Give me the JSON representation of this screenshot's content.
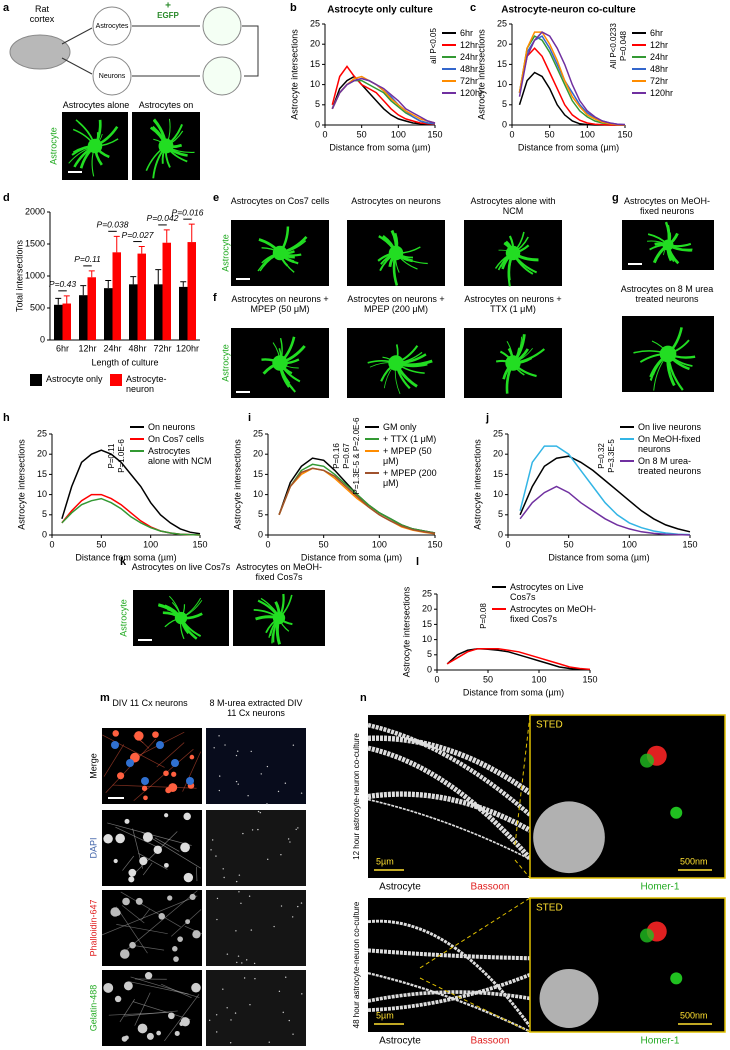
{
  "panel_letters": [
    "a",
    "b",
    "c",
    "d",
    "e",
    "f",
    "g",
    "h",
    "i",
    "j",
    "k",
    "l",
    "m",
    "n"
  ],
  "panel_a": {
    "region": "Rat cortex",
    "astrocytes": "Astrocytes",
    "neurons": "Neurons",
    "label": "EGFP",
    "plus": "+",
    "left": "Astrocytes alone",
    "right": "Astrocytes on neurons",
    "stain": "Astrocyte"
  },
  "panel_e": {
    "headers": [
      "Astrocytes on Cos7 cells",
      "Astrocytes on neurons",
      "Astrocytes alone with NCM"
    ],
    "stain": "Astrocyte"
  },
  "panel_f": {
    "headers": [
      "Astrocytes on neurons + MPEP (50 μM)",
      "Astrocytes on neurons + MPEP (200 μM)",
      "Astrocytes on neurons + TTX (1 μM)"
    ],
    "stain": "Astrocyte"
  },
  "panel_g": {
    "headers": [
      "Astrocytes on MeOH-fixed neurons",
      "Astrocytes on 8 M urea treated neurons"
    ]
  },
  "panel_k": {
    "headers": [
      "Astrocytes on live Cos7s",
      "Astrocytes on MeOH-fixed Cos7s"
    ],
    "stain": "Astrocyte"
  },
  "panel_m": {
    "columns": [
      "DIV 11 Cx neurons",
      "8 M-urea extracted DIV 11 Cx neurons"
    ],
    "rows": [
      "Merge",
      "DAPI",
      "Phalloidin-647",
      "Gelatin-488"
    ]
  },
  "panel_n": {
    "rows": [
      "12 hour astrocyte-neuron co-culture",
      "48 hour astrocyte-neuron co-culture"
    ],
    "inset": "STED",
    "scale_large": "5µm",
    "scale_small": "500nm",
    "channels": [
      "Astrocyte",
      "Bassoon",
      "Homer-1"
    ]
  },
  "chart_data": [
    {
      "type": "line",
      "title": "Astrocyte only culture",
      "xlabel": "Distance from soma (µm)",
      "ylabel": "Astrocyte intersections",
      "x": [
        10,
        20,
        30,
        40,
        50,
        60,
        70,
        80,
        90,
        100,
        110,
        120,
        130,
        140,
        150
      ],
      "xlim": [
        0,
        150
      ],
      "xticks": [
        0,
        50,
        100,
        150
      ],
      "ylim": [
        0,
        25
      ],
      "yticks": [
        0,
        5,
        10,
        15,
        20,
        25
      ],
      "legend": "outside right",
      "annotations": [
        "all P<0.05"
      ],
      "series": [
        {
          "name": "6hr",
          "color": "#000000",
          "values": [
            4,
            9,
            11,
            12,
            10,
            8,
            6,
            4,
            2.5,
            1.5,
            1,
            0.5,
            0.3,
            0.2,
            0.1
          ]
        },
        {
          "name": "12hr",
          "color": "#ff0000",
          "values": [
            5,
            12,
            14.5,
            12,
            10,
            9,
            8,
            6,
            4,
            2.5,
            1.5,
            1,
            0.5,
            0.3,
            0.2
          ]
        },
        {
          "name": "24hr",
          "color": "#339933",
          "values": [
            4,
            8,
            10,
            11,
            11,
            10,
            9,
            8,
            6,
            4.5,
            3,
            2,
            1,
            0.5,
            0.3
          ]
        },
        {
          "name": "48hr",
          "color": "#3366cc",
          "values": [
            4,
            8,
            10,
            11,
            11.5,
            11,
            10,
            8.5,
            7,
            5,
            3.5,
            2,
            1,
            0.5,
            0.3
          ]
        },
        {
          "name": "72hr",
          "color": "#ff8c00",
          "values": [
            4,
            8,
            10,
            11.5,
            12,
            11,
            10,
            8.5,
            6.5,
            5,
            3.5,
            2.5,
            1.5,
            1,
            0.5
          ]
        },
        {
          "name": "120hr",
          "color": "#7030a0",
          "values": [
            4,
            8,
            10,
            11,
            11.5,
            11,
            10,
            9,
            7.5,
            6,
            4,
            3,
            2,
            1,
            0.5
          ]
        }
      ]
    },
    {
      "type": "line",
      "title": "Astrocyte-neuron co-culture",
      "xlabel": "Distance from soma (µm)",
      "ylabel": "Astrocyte intersections",
      "x": [
        10,
        20,
        30,
        40,
        50,
        60,
        70,
        80,
        90,
        100,
        110,
        120,
        130,
        140,
        150
      ],
      "xlim": [
        0,
        150
      ],
      "xticks": [
        0,
        50,
        100,
        150
      ],
      "ylim": [
        0,
        25
      ],
      "yticks": [
        0,
        5,
        10,
        15,
        20,
        25
      ],
      "legend": "outside right",
      "annotations": [
        "P=0.048",
        "All P<0.0233"
      ],
      "series": [
        {
          "name": "6hr",
          "color": "#000000",
          "values": [
            5,
            11,
            13,
            12,
            9,
            5,
            2.5,
            1,
            0.3,
            0.1,
            0,
            0,
            0,
            0,
            0
          ]
        },
        {
          "name": "12hr",
          "color": "#ff0000",
          "values": [
            8,
            17,
            19,
            17,
            13,
            9,
            5,
            2.5,
            1.2,
            0.5,
            0.2,
            0.1,
            0,
            0,
            0
          ]
        },
        {
          "name": "24hr",
          "color": "#339933",
          "values": [
            8,
            19,
            22,
            21,
            18,
            14,
            10,
            6,
            3.5,
            2,
            1,
            0.5,
            0.3,
            0.1,
            0
          ]
        },
        {
          "name": "48hr",
          "color": "#3366cc",
          "values": [
            8,
            18,
            21,
            22,
            19,
            15,
            11,
            8,
            5,
            3,
            1.8,
            1,
            0.5,
            0.2,
            0.1
          ]
        },
        {
          "name": "72hr",
          "color": "#ff8c00",
          "values": [
            8,
            19,
            23,
            23,
            20,
            16,
            11,
            7,
            4.5,
            2.5,
            1.5,
            0.7,
            0.3,
            0.1,
            0
          ]
        },
        {
          "name": "120hr",
          "color": "#7030a0",
          "values": [
            7,
            17,
            21,
            23,
            22,
            19,
            15,
            10,
            6,
            3.5,
            2,
            1,
            0.5,
            0.2,
            0.1
          ]
        }
      ]
    },
    {
      "type": "bar",
      "xlabel": "Length of culture",
      "ylabel": "Total intersections",
      "categories": [
        "6hr",
        "12hr",
        "24hr",
        "48hr",
        "72hr",
        "120hr"
      ],
      "ylim": [
        0,
        2000
      ],
      "yticks": [
        0,
        500,
        1000,
        1500,
        2000
      ],
      "legend": "below",
      "annotations": [
        "P=0.43",
        "P=0.11",
        "P=0.038",
        "P=0.027",
        "P=0.042",
        "P=0.016"
      ],
      "series": [
        {
          "name": "Astrocyte only",
          "color": "#000000",
          "values": [
            550,
            700,
            810,
            870,
            870,
            830
          ],
          "errors": [
            100,
            150,
            120,
            120,
            230,
            80
          ]
        },
        {
          "name": "Astrocyte-neuron",
          "color": "#ff0000",
          "values": [
            570,
            980,
            1370,
            1350,
            1520,
            1530
          ],
          "errors": [
            120,
            100,
            250,
            110,
            200,
            280
          ]
        }
      ]
    },
    {
      "type": "line",
      "xlabel": "Distance from soma (µm)",
      "ylabel": "Astrocyte intersections",
      "x": [
        10,
        20,
        30,
        40,
        50,
        60,
        70,
        80,
        90,
        100,
        110,
        120,
        130,
        140,
        150
      ],
      "xlim": [
        0,
        150
      ],
      "xticks": [
        0,
        50,
        100,
        150
      ],
      "ylim": [
        0,
        25
      ],
      "yticks": [
        0,
        5,
        10,
        15,
        20,
        25
      ],
      "legend": "upper right",
      "annotations": [
        "P=1.0E-6",
        "P=0.11"
      ],
      "series": [
        {
          "name": "On neurons",
          "color": "#000000",
          "values": [
            4,
            12,
            18,
            20,
            21,
            20,
            18,
            15,
            12,
            8,
            5,
            3,
            1.5,
            0.7,
            0.3
          ]
        },
        {
          "name": "On Cos7 cells",
          "color": "#ff0000",
          "values": [
            3,
            6,
            8.5,
            10,
            10,
            9,
            7.5,
            5.5,
            3.5,
            2,
            1,
            0.5,
            0.2,
            0.1,
            0
          ]
        },
        {
          "name": "Astrocytes alone with NCM",
          "color": "#339933",
          "values": [
            3,
            5.5,
            7.5,
            8.5,
            9,
            8,
            6.5,
            4.5,
            3,
            1.8,
            1,
            0.5,
            0.2,
            0.1,
            0
          ]
        }
      ]
    },
    {
      "type": "line",
      "xlabel": "Distance from soma (µm)",
      "ylabel": "Astrocyte intersections",
      "x": [
        10,
        20,
        30,
        40,
        50,
        60,
        70,
        80,
        90,
        100,
        110,
        120,
        130,
        140,
        150
      ],
      "xlim": [
        0,
        150
      ],
      "xticks": [
        0,
        50,
        100,
        150
      ],
      "ylim": [
        0,
        25
      ],
      "yticks": [
        0,
        5,
        10,
        15,
        20,
        25
      ],
      "legend": "upper right",
      "annotations": [
        "P=1.3E-5 & P=2.0E-6",
        "P=0.67",
        "P=0.16"
      ],
      "series": [
        {
          "name": "GM only",
          "color": "#000000",
          "values": [
            5,
            13,
            17,
            19,
            18.5,
            16,
            13,
            10,
            7.5,
            5.5,
            4,
            2.5,
            1.5,
            1,
            0.5
          ]
        },
        {
          "name": "+ TTX (1 μM)",
          "color": "#339933",
          "values": [
            5,
            12,
            16,
            17.5,
            17,
            15,
            12.5,
            10,
            7.5,
            5.5,
            4,
            2.5,
            1.5,
            1,
            0.5
          ]
        },
        {
          "name": "+ MPEP (50 μM)",
          "color": "#ff8c00",
          "values": [
            5,
            12,
            15,
            16.5,
            16,
            14,
            11.5,
            9,
            7,
            5,
            3.5,
            2,
            1.2,
            0.7,
            0.3
          ]
        },
        {
          "name": "+ MPEP (200 μM)",
          "color": "#a0522d",
          "values": [
            5,
            12,
            15.5,
            16.5,
            16,
            14.5,
            12,
            9.5,
            7,
            5,
            3.5,
            2.2,
            1.3,
            0.8,
            0.4
          ]
        }
      ]
    },
    {
      "type": "line",
      "xlabel": "Distance from soma (µm)",
      "ylabel": "Astrocyte intersections",
      "x": [
        10,
        20,
        30,
        40,
        50,
        60,
        70,
        80,
        90,
        100,
        110,
        120,
        130,
        140,
        150
      ],
      "xlim": [
        0,
        150
      ],
      "xticks": [
        0,
        50,
        100,
        150
      ],
      "ylim": [
        0,
        25
      ],
      "yticks": [
        0,
        5,
        10,
        15,
        20,
        25
      ],
      "legend": "upper right",
      "annotations": [
        "P=3.3E-5",
        "P=0.32"
      ],
      "series": [
        {
          "name": "On live neurons",
          "color": "#000000",
          "values": [
            5,
            12,
            17,
            19,
            19.5,
            18,
            16,
            13.5,
            11,
            8.5,
            6,
            4,
            2.5,
            1.5,
            0.8
          ]
        },
        {
          "name": "On MeOH-fixed neurons",
          "color": "#33b5e5",
          "values": [
            6,
            18,
            22,
            22,
            20,
            16,
            12,
            8,
            5,
            3,
            1.8,
            1,
            0.5,
            0.2,
            0.1
          ]
        },
        {
          "name": "On 8 M urea-treated neurons",
          "color": "#7030a0",
          "values": [
            4,
            8,
            10.5,
            12,
            10.5,
            8,
            6,
            4,
            2.5,
            1.5,
            0.8,
            0.4,
            0.2,
            0.1,
            0
          ]
        }
      ]
    },
    {
      "type": "line",
      "xlabel": "Distance from soma (µm)",
      "ylabel": "Astrocyte intersections",
      "x": [
        10,
        20,
        30,
        40,
        50,
        60,
        70,
        80,
        90,
        100,
        110,
        120,
        130,
        140,
        150
      ],
      "xlim": [
        0,
        150
      ],
      "xticks": [
        0,
        50,
        100,
        150
      ],
      "ylim": [
        0,
        25
      ],
      "yticks": [
        0,
        5,
        10,
        15,
        20,
        25
      ],
      "legend": "upper right",
      "annotations": [
        "P=0.08"
      ],
      "series": [
        {
          "name": "Astrocytes on Live Cos7s",
          "color": "#000000",
          "values": [
            2,
            5,
            6.5,
            7,
            6.8,
            6.5,
            6,
            5,
            4,
            3,
            2,
            1,
            0.5,
            0.2,
            0.1
          ]
        },
        {
          "name": "Astrocytes on MeOH-fixed Cos7s",
          "color": "#ff0000",
          "values": [
            2,
            4,
            6,
            7,
            7,
            7,
            6.5,
            6,
            5,
            4,
            3,
            2,
            1,
            0.5,
            0.2
          ]
        }
      ]
    }
  ]
}
